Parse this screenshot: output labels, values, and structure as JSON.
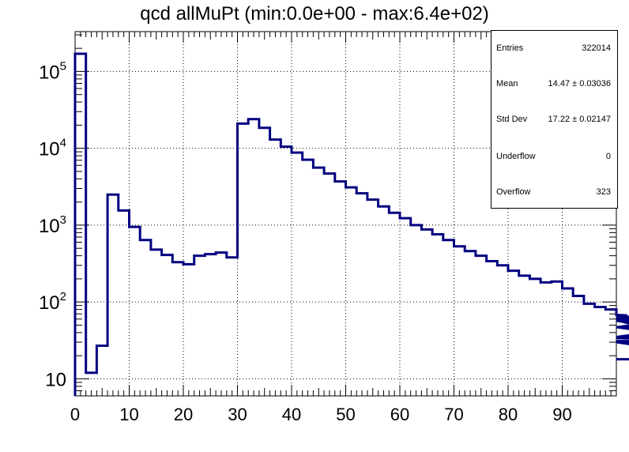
{
  "chart_data": {
    "type": "histogram",
    "title": "qcd allMuPt (min:0.0e+00 - max:6.4e+02)",
    "xlabel": "",
    "ylabel": "",
    "xlim": [
      0,
      100
    ],
    "ylim": [
      6,
      330000
    ],
    "yscale": "log",
    "grid": true,
    "line_color": "#000080",
    "bin_width": 2,
    "x_ticks": [
      0,
      10,
      20,
      30,
      40,
      50,
      60,
      70,
      80,
      90
    ],
    "x_tick_labels": [
      "0",
      "10",
      "20",
      "30",
      "40",
      "50",
      "60",
      "70",
      "80",
      "90"
    ],
    "y_ticks": [
      {
        "value": 10,
        "base": "10",
        "exp": ""
      },
      {
        "value": 100,
        "base": "10",
        "exp": "2"
      },
      {
        "value": 1000,
        "base": "10",
        "exp": "3"
      },
      {
        "value": 10000,
        "base": "10",
        "exp": "4"
      },
      {
        "value": 100000,
        "base": "10",
        "exp": "5"
      }
    ],
    "bin_edges_start": 0,
    "values": [
      170000,
      12,
      27,
      2500,
      1550,
      950,
      640,
      480,
      410,
      330,
      310,
      400,
      420,
      440,
      380,
      21000,
      24000,
      18500,
      13000,
      10500,
      8800,
      7100,
      5600,
      4700,
      3700,
      3100,
      2600,
      2150,
      1750,
      1450,
      1230,
      1000,
      880,
      760,
      640,
      530,
      460,
      400,
      340,
      300,
      255,
      220,
      200,
      180,
      185,
      150,
      120,
      95,
      86,
      80,
      68,
      67,
      62,
      57,
      47,
      58,
      35,
      47,
      34,
      31,
      30,
      18
    ]
  },
  "stats": {
    "rows": [
      {
        "label": "Entries",
        "value": "322014"
      },
      {
        "label": "Mean",
        "value": "14.47 ± 0.03036"
      },
      {
        "label": "Std Dev",
        "value": "17.22 ± 0.02147"
      },
      {
        "label": "Underflow",
        "value": "0"
      },
      {
        "label": "Overflow",
        "value": "323"
      }
    ]
  }
}
